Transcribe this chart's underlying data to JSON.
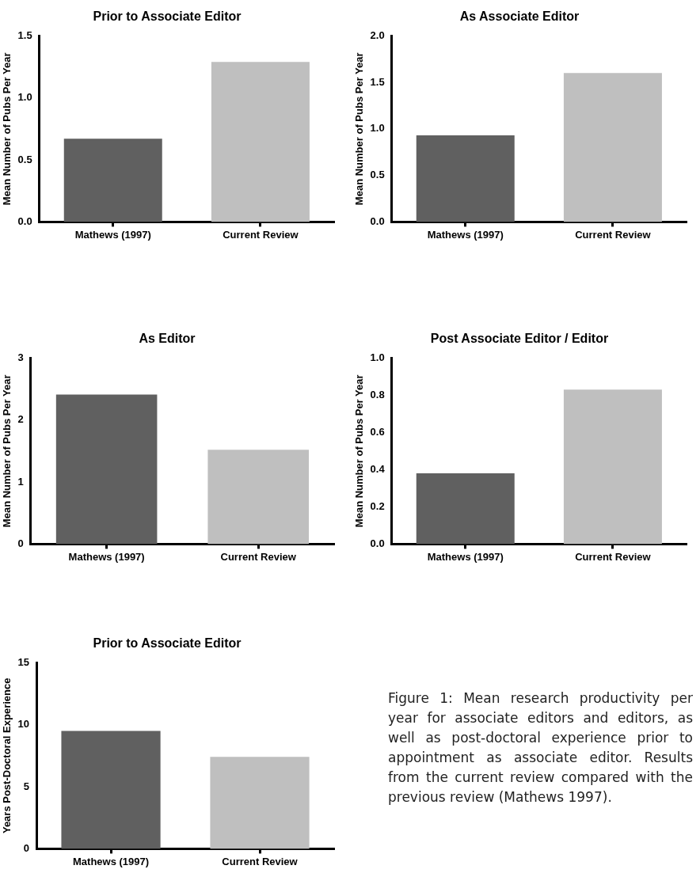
{
  "chart_data": [
    {
      "type": "bar",
      "title": "Prior to Associate Editor",
      "ylabel": "Mean Number of Pubs Per Year",
      "categories": [
        "Mathews (1997)",
        "Current Review"
      ],
      "values": [
        0.67,
        1.29
      ],
      "colors": [
        "#606060",
        "#bfbfbf"
      ],
      "ylim": [
        0,
        1.5
      ],
      "yticks": [
        {
          "value": 0,
          "label": "0.0"
        },
        {
          "value": 0.5,
          "label": "0.5"
        },
        {
          "value": 1,
          "label": "1.0"
        },
        {
          "value": 1.5,
          "label": "1.5"
        }
      ],
      "grid": false,
      "legend": false
    },
    {
      "type": "bar",
      "title": "As Associate Editor",
      "ylabel": "Mean Number of Pubs Per Year",
      "categories": [
        "Mathews (1997)",
        "Current Review"
      ],
      "values": [
        0.93,
        1.6
      ],
      "colors": [
        "#606060",
        "#bfbfbf"
      ],
      "ylim": [
        0,
        2
      ],
      "yticks": [
        {
          "value": 0,
          "label": "0.0"
        },
        {
          "value": 0.5,
          "label": "0.5"
        },
        {
          "value": 1,
          "label": "1.0"
        },
        {
          "value": 1.5,
          "label": "1.5"
        },
        {
          "value": 2,
          "label": "2.0"
        }
      ],
      "grid": false,
      "legend": false
    },
    {
      "type": "bar",
      "title": "As Editor",
      "ylabel": "Mean Number of Pubs Per Year",
      "categories": [
        "Mathews (1997)",
        "Current Review"
      ],
      "values": [
        2.41,
        1.52
      ],
      "colors": [
        "#606060",
        "#bfbfbf"
      ],
      "ylim": [
        0,
        3
      ],
      "yticks": [
        0,
        1,
        2,
        3
      ],
      "grid": false,
      "legend": false
    },
    {
      "type": "bar",
      "title": "Post Associate Editor / Editor",
      "ylabel": "Mean Number of Pubs Per Year",
      "categories": [
        "Mathews (1997)",
        "Current Review"
      ],
      "values": [
        0.38,
        0.83
      ],
      "colors": [
        "#606060",
        "#bfbfbf"
      ],
      "ylim": [
        0,
        1
      ],
      "yticks": [
        {
          "value": 0,
          "label": "0.0"
        },
        {
          "value": 0.2,
          "label": "0.2"
        },
        {
          "value": 0.4,
          "label": "0.4"
        },
        {
          "value": 0.6,
          "label": "0.6"
        },
        {
          "value": 0.8,
          "label": "0.8"
        },
        {
          "value": 1,
          "label": "1.0"
        }
      ],
      "grid": false,
      "legend": false
    },
    {
      "type": "bar",
      "title": "Prior to Associate Editor",
      "ylabel": "Years Post-Doctoral Experience",
      "categories": [
        "Mathews (1997)",
        "Current Review"
      ],
      "values": [
        9.5,
        7.4
      ],
      "colors": [
        "#606060",
        "#bfbfbf"
      ],
      "ylim": [
        0,
        15
      ],
      "yticks": [
        0,
        5,
        10,
        15
      ],
      "grid": false,
      "legend": false,
      "annotations": [
        "Figure 1: Mean research productivity per year for associate editors and editors, as well as post-doctoral experience prior to appointment as associate editor. Results from the current review compared with the previous review (Mathews 1997)."
      ]
    }
  ]
}
